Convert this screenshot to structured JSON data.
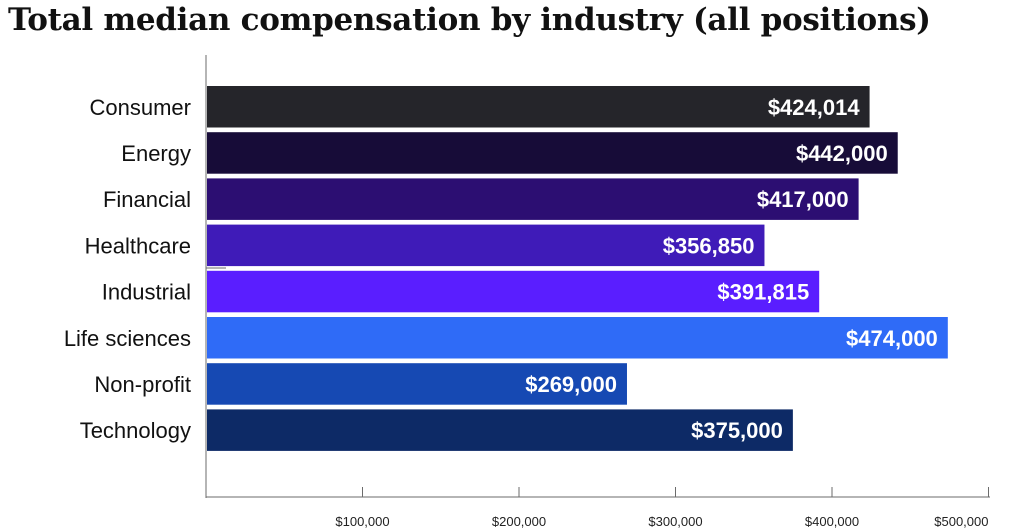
{
  "chart_data": {
    "type": "bar",
    "orientation": "horizontal",
    "title": "Total median compensation by industry (all positions)",
    "categories": [
      "Consumer",
      "Energy",
      "Financial",
      "Healthcare",
      "Industrial",
      "Life sciences",
      "Non-profit",
      "Technology"
    ],
    "values": [
      424014,
      442000,
      417000,
      356850,
      391815,
      474000,
      269000,
      375000
    ],
    "value_labels": [
      "$424,014",
      "$442,000",
      "$417,000",
      "$356,850",
      "$391,815",
      "$474,000",
      "$269,000",
      "$375,000"
    ],
    "bar_colors": [
      "#25252a",
      "#170c38",
      "#2c0e72",
      "#3f1bb8",
      "#5a1eff",
      "#2f6bf7",
      "#1649b3",
      "#0d2a66"
    ],
    "xlim": [
      0,
      500000
    ],
    "xticks": [
      100000,
      200000,
      300000,
      400000,
      500000
    ],
    "xtick_labels": [
      "$100,000",
      "$200,000",
      "$300,000",
      "$400,000",
      "$500,000"
    ],
    "xlabel": "",
    "ylabel": "",
    "grid": false,
    "legend": "none"
  }
}
